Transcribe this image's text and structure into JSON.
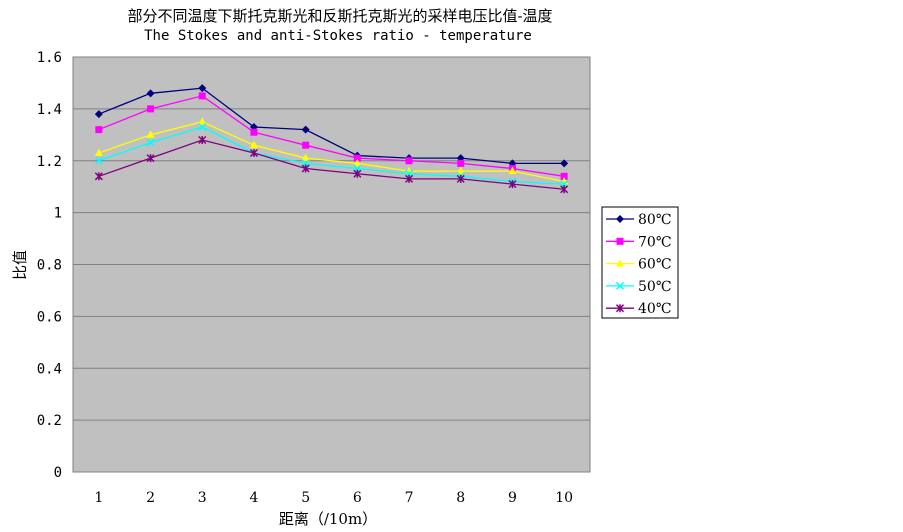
{
  "chart_data": {
    "type": "line",
    "title": "部分不同温度下斯托克斯光和反斯托克斯光的采样电压比值-温度",
    "subtitle": "The Stokes and anti-Stokes ratio  -  temperature",
    "xlabel": "距离（/10m）",
    "ylabel": "比值",
    "categories": [
      "1",
      "2",
      "3",
      "4",
      "5",
      "6",
      "7",
      "8",
      "9",
      "10"
    ],
    "ylim": [
      0,
      1.6
    ],
    "yticks": [
      "0",
      "0.2",
      "0.4",
      "0.6",
      "0.8",
      "1",
      "1.2",
      "1.4",
      "1.6"
    ],
    "grid": true,
    "legend_position": "right",
    "series": [
      {
        "name": "80℃",
        "color": "#000080",
        "marker": "diamond",
        "values": [
          1.38,
          1.46,
          1.48,
          1.33,
          1.32,
          1.22,
          1.21,
          1.21,
          1.19,
          1.19
        ]
      },
      {
        "name": "70℃",
        "color": "#FF00FF",
        "marker": "square",
        "values": [
          1.32,
          1.4,
          1.45,
          1.31,
          1.26,
          1.21,
          1.2,
          1.19,
          1.17,
          1.14
        ]
      },
      {
        "name": "60℃",
        "color": "#FFFF00",
        "marker": "triangle",
        "values": [
          1.23,
          1.3,
          1.35,
          1.26,
          1.21,
          1.19,
          1.16,
          1.16,
          1.16,
          1.12
        ]
      },
      {
        "name": "50℃",
        "color": "#00FFFF",
        "marker": "x",
        "values": [
          1.2,
          1.27,
          1.33,
          1.23,
          1.19,
          1.17,
          1.15,
          1.14,
          1.12,
          1.11
        ]
      },
      {
        "name": "40℃",
        "color": "#800080",
        "marker": "star",
        "values": [
          1.14,
          1.21,
          1.28,
          1.23,
          1.17,
          1.15,
          1.13,
          1.13,
          1.11,
          1.09
        ]
      }
    ]
  }
}
